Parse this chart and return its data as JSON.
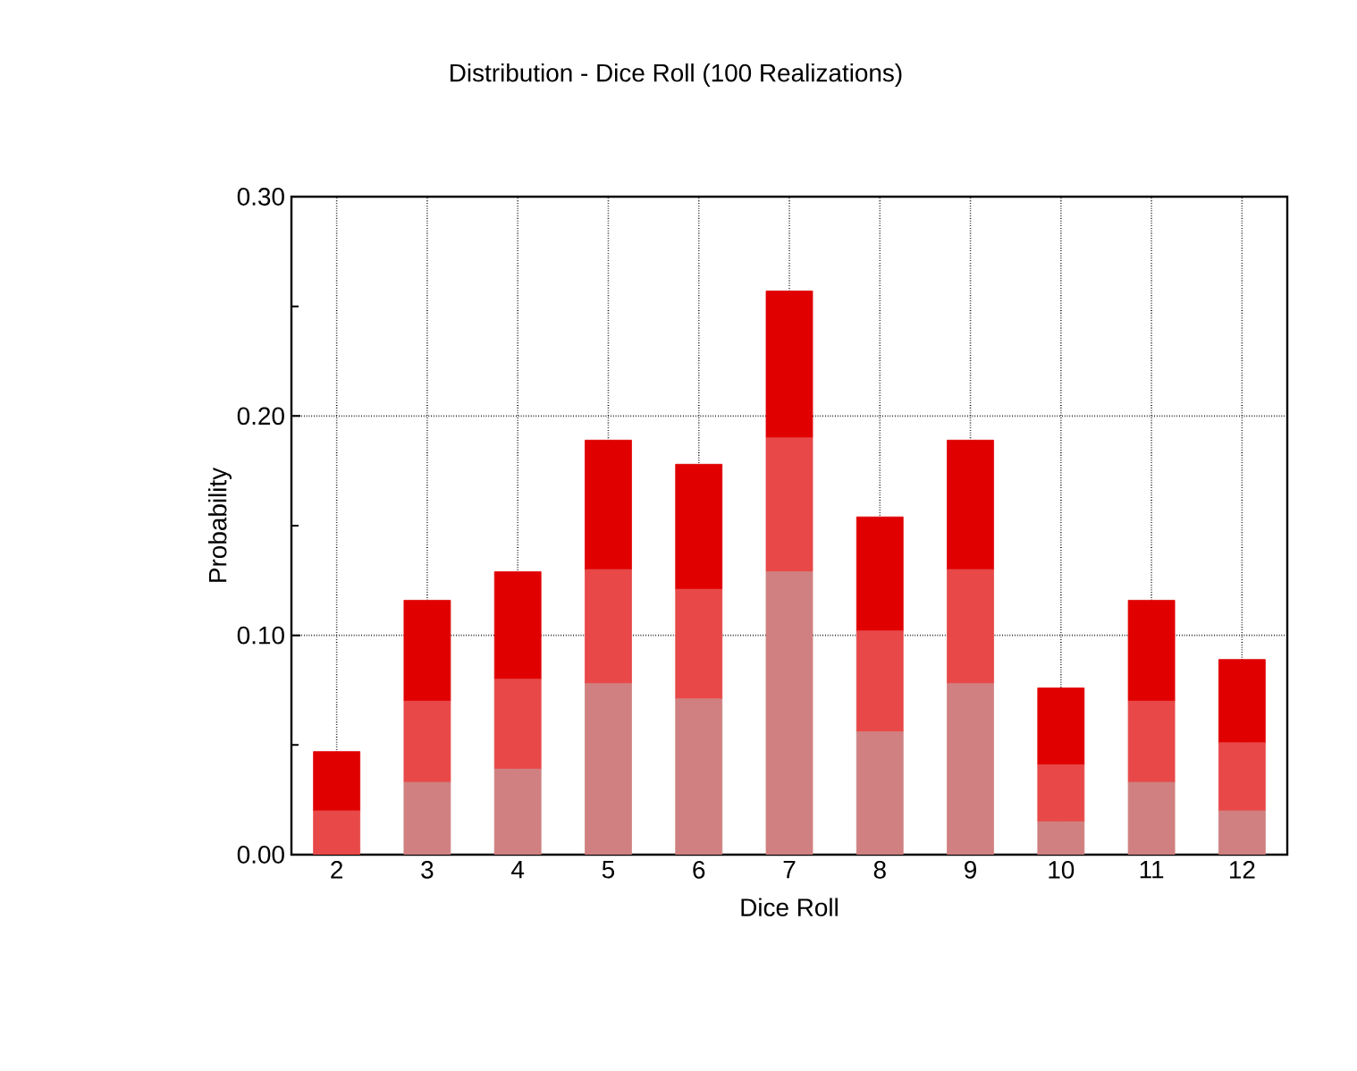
{
  "chart_data": {
    "type": "bar",
    "title": "Distribution - Dice Roll (100 Realizations)",
    "xlabel": "Dice Roll",
    "ylabel": "Probability",
    "categories": [
      "2",
      "3",
      "4",
      "5",
      "6",
      "7",
      "8",
      "9",
      "10",
      "11",
      "12"
    ],
    "stacked": true,
    "series": [
      {
        "color": "#d08080",
        "values": [
          0,
          0.033,
          0.039,
          0.078,
          0.071,
          0.129,
          0.056,
          0.078,
          0.015,
          0.033,
          0.02
        ]
      },
      {
        "color": "#e84848",
        "values": [
          0.02,
          0.037,
          0.041,
          0.052,
          0.05,
          0.061,
          0.046,
          0.052,
          0.026,
          0.037,
          0.031
        ]
      },
      {
        "color": "#e00000",
        "values": [
          0.027,
          0.046,
          0.049,
          0.059,
          0.057,
          0.067,
          0.052,
          0.059,
          0.035,
          0.046,
          0.038
        ]
      }
    ],
    "ylim": [
      0,
      0.3
    ],
    "yticks": [
      {
        "value": 0,
        "label": "0.00"
      },
      {
        "value": 0.1,
        "label": "0.10"
      },
      {
        "value": 0.2,
        "label": "0.20"
      },
      {
        "value": 0.3,
        "label": "0.30"
      }
    ],
    "grid": true
  }
}
